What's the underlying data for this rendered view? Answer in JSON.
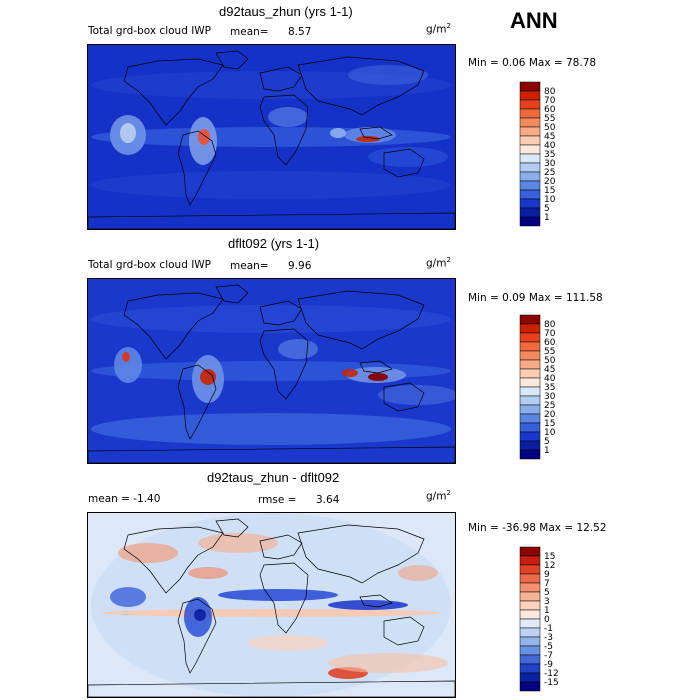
{
  "season": "ANN",
  "panels": [
    {
      "title": "d92taus_zhun (yrs 1-1)",
      "left_label": "Total grd-box cloud IWP",
      "mean_text": "mean=",
      "mean_value": "8.57",
      "units_base": "g/m",
      "units_exp": "2",
      "minmax_text": "Min =    0.06 Max =   78.78"
    },
    {
      "title": "dflt092 (yrs 1-1)",
      "left_label": "Total grd-box cloud IWP",
      "mean_text": "mean=",
      "mean_value": "9.96",
      "units_base": "g/m",
      "units_exp": "2",
      "minmax_text": "Min =    0.09 Max = 111.58"
    },
    {
      "title": "d92taus_zhun - dflt092",
      "left_label": "mean =   -1.40",
      "mean_text": "rmse =",
      "mean_value": "3.64",
      "units_base": "g/m",
      "units_exp": "2",
      "minmax_text": "Min = -36.98 Max =   12.52"
    }
  ],
  "chart_data": [
    {
      "type": "heatmap",
      "title": "d92taus_zhun (yrs 1-1)",
      "variable": "Total grd-box cloud IWP",
      "units": "g/m2",
      "mean": 8.57,
      "min": 0.06,
      "max": 78.78,
      "colorbar_levels": [
        "80",
        "70",
        "60",
        "55",
        "50",
        "45",
        "40",
        "35",
        "30",
        "25",
        "20",
        "15",
        "10",
        "5",
        "1"
      ],
      "colorbar_colors": [
        "#8b0000",
        "#cc2200",
        "#e8401c",
        "#f06a3c",
        "#f48a5c",
        "#f8ab86",
        "#fbcdb2",
        "#fce8dc",
        "#d8e8f8",
        "#b2cdf2",
        "#8aaeea",
        "#5c86e4",
        "#3660dc",
        "#1838cc",
        "#0a1fa0",
        "#000080"
      ]
    },
    {
      "type": "heatmap",
      "title": "dflt092 (yrs 1-1)",
      "variable": "Total grd-box cloud IWP",
      "units": "g/m2",
      "mean": 9.96,
      "min": 0.09,
      "max": 111.58,
      "colorbar_levels": [
        "80",
        "70",
        "60",
        "55",
        "50",
        "45",
        "40",
        "35",
        "30",
        "25",
        "20",
        "15",
        "10",
        "5",
        "1"
      ],
      "colorbar_colors": [
        "#8b0000",
        "#cc2200",
        "#e8401c",
        "#f06a3c",
        "#f48a5c",
        "#f8ab86",
        "#fbcdb2",
        "#fce8dc",
        "#d8e8f8",
        "#b2cdf2",
        "#8aaeea",
        "#5c86e4",
        "#3660dc",
        "#1838cc",
        "#0a1fa0",
        "#000080"
      ]
    },
    {
      "type": "heatmap",
      "title": "d92taus_zhun - dflt092",
      "units": "g/m2",
      "mean": -1.4,
      "rmse": 3.64,
      "min": -36.98,
      "max": 12.52,
      "colorbar_levels": [
        "15",
        "12",
        "9",
        "7",
        "5",
        "3",
        "1",
        "0",
        "-1",
        "-3",
        "-5",
        "-7",
        "-9",
        "-12",
        "-15"
      ],
      "colorbar_colors": [
        "#8b0000",
        "#c81e10",
        "#e04428",
        "#ee6a48",
        "#f49070",
        "#f8b296",
        "#fbd0bc",
        "#fde8de",
        "#deeaf8",
        "#bcd3f4",
        "#92b4ec",
        "#6a90e4",
        "#4068d8",
        "#1e42c8",
        "#0c22a4",
        "#000080"
      ]
    }
  ]
}
